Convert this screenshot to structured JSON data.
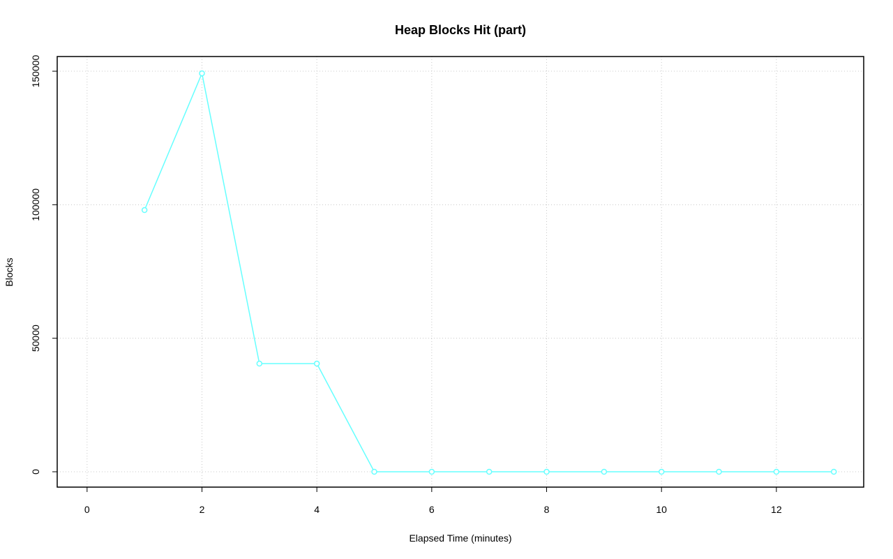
{
  "chart_data": {
    "type": "line",
    "title": "Heap Blocks Hit (part)",
    "x_label": "Elapsed Time (minutes)",
    "y_label": "Blocks",
    "x": [
      1,
      2,
      3,
      4,
      5,
      6,
      7,
      8,
      9,
      10,
      11,
      12,
      13
    ],
    "values": [
      98000,
      149200,
      40500,
      40500,
      0,
      0,
      0,
      0,
      0,
      0,
      0,
      0,
      0
    ],
    "color": "#66ffff",
    "xlim": [
      -0.52,
      13.52
    ],
    "xticks": [
      0,
      2,
      4,
      6,
      8,
      10,
      12
    ],
    "ylim": [
      -5750,
      155500
    ],
    "yticks": [
      0,
      50000,
      100000,
      150000
    ],
    "grid": true
  }
}
